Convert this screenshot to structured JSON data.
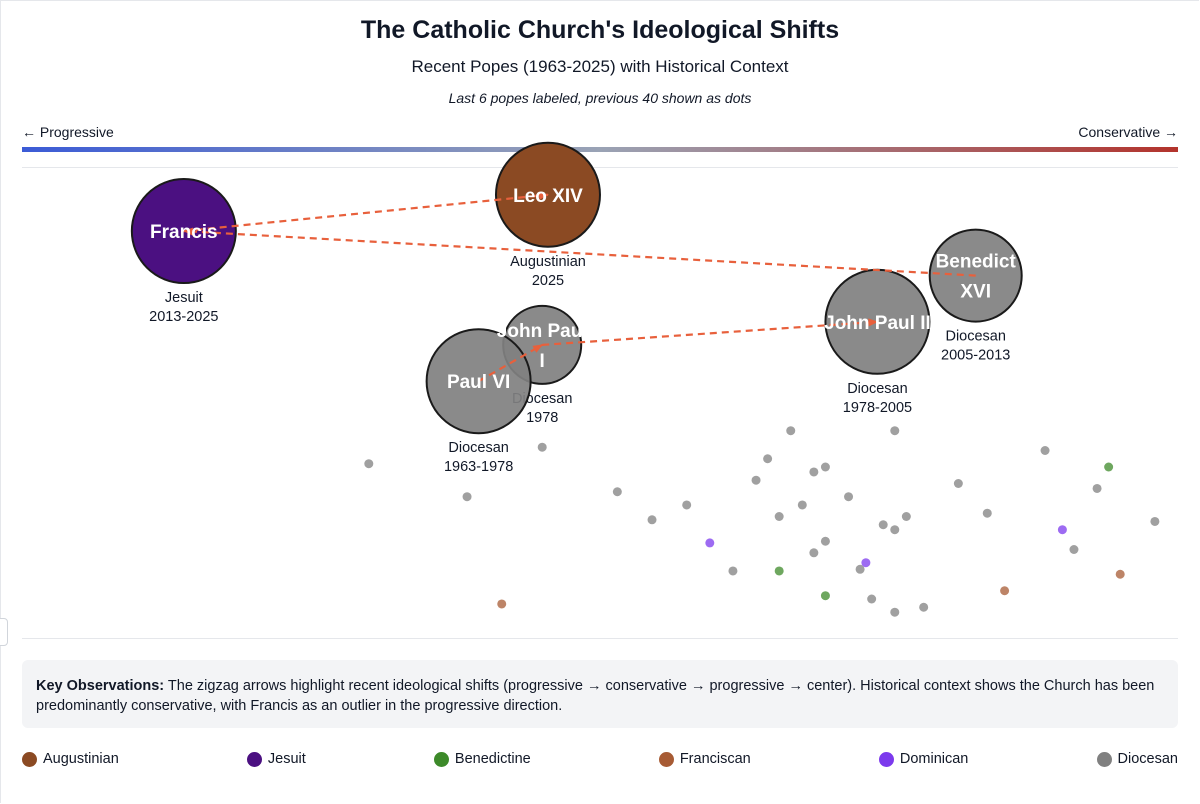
{
  "header": {
    "title": "The Catholic Church's Ideological Shifts",
    "subtitle": "Recent Popes (1963-2025) with Historical Context",
    "note": "Last 6 popes labeled, previous 40 shown as dots"
  },
  "axis": {
    "left_label": "← Progressive",
    "right_label": "Conservative →"
  },
  "colors": {
    "arrow": "#e8603c",
    "Augustinian": "#8b4a23",
    "Jesuit": "#4b1081",
    "Benedictine": "#3d8a2a",
    "Franciscan": "#a75b34",
    "Dominican": "#7c3aed",
    "Diocesan": "#808080"
  },
  "chart_data": {
    "type": "scatter",
    "popes": [
      {
        "label": "Francis",
        "order": "Jesuit",
        "years": "2013-2025",
        "x": -0.72,
        "y": 0.83
      },
      {
        "label": "Leo XIV",
        "order": "Augustinian",
        "years": "2025",
        "x": -0.09,
        "y": 1.05
      },
      {
        "label": "Benedict XVI",
        "order": "Diocesan",
        "years": "2005-2013",
        "x": 0.65,
        "y": 0.56
      },
      {
        "label": "John Paul II",
        "order": "Diocesan",
        "years": "1978-2005",
        "x": 0.48,
        "y": 0.28
      },
      {
        "label": "John Paul I",
        "order": "Diocesan",
        "years": "1978",
        "x": -0.1,
        "y": 0.14
      },
      {
        "label": "Paul VI",
        "order": "Diocesan",
        "years": "1963-1978",
        "x": -0.21,
        "y": -0.08
      }
    ],
    "shift_arrows": [
      [
        "Paul VI",
        "John Paul I"
      ],
      [
        "John Paul I",
        "John Paul II"
      ],
      [
        "Benedict XVI",
        "Francis"
      ],
      [
        "Francis",
        "Leo XIV"
      ]
    ],
    "historical": [
      {
        "x": -0.4,
        "y": -0.58,
        "order": "Diocesan"
      },
      {
        "x": -0.23,
        "y": -0.78,
        "order": "Diocesan"
      },
      {
        "x": -0.17,
        "y": -1.43,
        "order": "Franciscan"
      },
      {
        "x": -0.1,
        "y": -0.48,
        "order": "Diocesan"
      },
      {
        "x": 0.03,
        "y": -0.75,
        "order": "Diocesan"
      },
      {
        "x": 0.09,
        "y": -0.92,
        "order": "Diocesan"
      },
      {
        "x": 0.15,
        "y": -0.83,
        "order": "Diocesan"
      },
      {
        "x": 0.19,
        "y": -1.06,
        "order": "Dominican"
      },
      {
        "x": 0.23,
        "y": -1.23,
        "order": "Diocesan"
      },
      {
        "x": 0.27,
        "y": -0.68,
        "order": "Diocesan"
      },
      {
        "x": 0.29,
        "y": -0.55,
        "order": "Diocesan"
      },
      {
        "x": 0.31,
        "y": -0.9,
        "order": "Diocesan"
      },
      {
        "x": 0.31,
        "y": -1.23,
        "order": "Benedictine"
      },
      {
        "x": 0.33,
        "y": -0.38,
        "order": "Diocesan"
      },
      {
        "x": 0.35,
        "y": -0.83,
        "order": "Diocesan"
      },
      {
        "x": 0.37,
        "y": -0.63,
        "order": "Diocesan"
      },
      {
        "x": 0.37,
        "y": -1.12,
        "order": "Diocesan"
      },
      {
        "x": 0.39,
        "y": -0.6,
        "order": "Diocesan"
      },
      {
        "x": 0.39,
        "y": -1.05,
        "order": "Diocesan"
      },
      {
        "x": 0.39,
        "y": -1.38,
        "order": "Benedictine"
      },
      {
        "x": 0.43,
        "y": -0.78,
        "order": "Diocesan"
      },
      {
        "x": 0.45,
        "y": -1.22,
        "order": "Diocesan"
      },
      {
        "x": 0.46,
        "y": -1.18,
        "order": "Dominican"
      },
      {
        "x": 0.47,
        "y": -1.4,
        "order": "Diocesan"
      },
      {
        "x": 0.49,
        "y": -0.95,
        "order": "Diocesan"
      },
      {
        "x": 0.51,
        "y": -0.38,
        "order": "Diocesan"
      },
      {
        "x": 0.51,
        "y": -0.98,
        "order": "Diocesan"
      },
      {
        "x": 0.51,
        "y": -1.48,
        "order": "Diocesan"
      },
      {
        "x": 0.53,
        "y": -0.9,
        "order": "Diocesan"
      },
      {
        "x": 0.56,
        "y": -1.45,
        "order": "Diocesan"
      },
      {
        "x": 0.62,
        "y": -0.7,
        "order": "Diocesan"
      },
      {
        "x": 0.67,
        "y": -0.88,
        "order": "Diocesan"
      },
      {
        "x": 0.7,
        "y": -1.35,
        "order": "Franciscan"
      },
      {
        "x": 0.77,
        "y": -0.5,
        "order": "Diocesan"
      },
      {
        "x": 0.8,
        "y": -0.98,
        "order": "Dominican"
      },
      {
        "x": 0.82,
        "y": -1.1,
        "order": "Diocesan"
      },
      {
        "x": 0.86,
        "y": -0.73,
        "order": "Diocesan"
      },
      {
        "x": 0.88,
        "y": -0.6,
        "order": "Benedictine"
      },
      {
        "x": 0.9,
        "y": -1.25,
        "order": "Franciscan"
      },
      {
        "x": 0.96,
        "y": -0.93,
        "order": "Diocesan"
      }
    ],
    "xlim": [
      -1,
      1
    ],
    "ylim": [
      -1.6,
      1.2
    ],
    "legend_placement": "bottom"
  },
  "observations": {
    "heading": "Key Observations:",
    "text": " The zigzag arrows highlight recent ideological shifts (progressive → conservative → progressive → center). Historical context shows the Church has been predominantly conservative, with Francis as an outlier in the progressive direction."
  },
  "legend": [
    {
      "label": "Augustinian",
      "color": "#8b4a23"
    },
    {
      "label": "Jesuit",
      "color": "#4b1081"
    },
    {
      "label": "Benedictine",
      "color": "#3d8a2a"
    },
    {
      "label": "Franciscan",
      "color": "#a75b34"
    },
    {
      "label": "Dominican",
      "color": "#7c3aed"
    },
    {
      "label": "Diocesan",
      "color": "#808080"
    }
  ]
}
